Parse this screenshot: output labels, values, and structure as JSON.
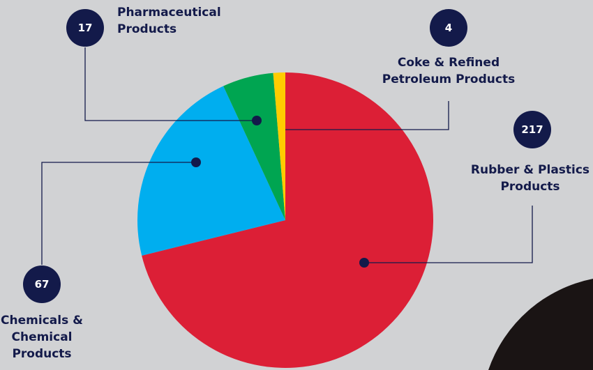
{
  "chart_data": {
    "type": "pie",
    "categories": [
      "Rubber & Plastics Products",
      "Chemicals & Chemical Products",
      "Pharmaceutical Products",
      "Coke & Refined Petroleum Products"
    ],
    "values": [
      217,
      67,
      17,
      4
    ],
    "colors": [
      "#dc1f36",
      "#00aeef",
      "#00a551",
      "#ffcc00"
    ]
  }
}
